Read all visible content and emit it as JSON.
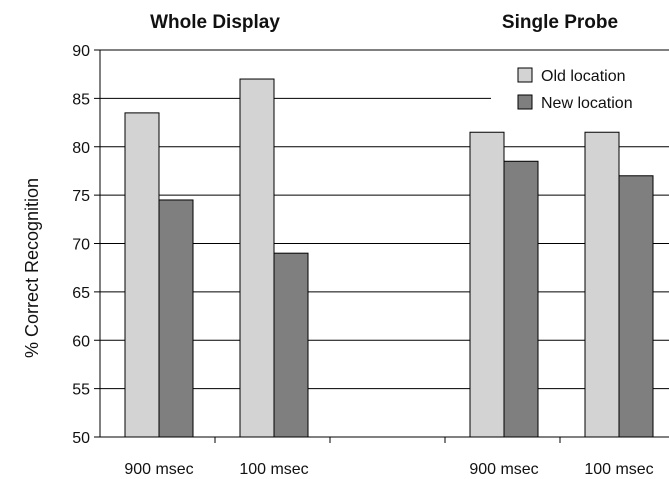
{
  "chart_data": {
    "type": "bar",
    "panels": [
      {
        "title": "Whole Display",
        "categories": [
          "900 msec",
          "100 msec"
        ]
      },
      {
        "title": "Single Probe",
        "categories": [
          "900 msec",
          "100 msec"
        ]
      }
    ],
    "categories": [
      "900 msec",
      "100 msec",
      "900 msec",
      "100 msec"
    ],
    "series": [
      {
        "name": "Old location",
        "color": "#d3d3d3",
        "values": [
          83.5,
          87,
          81.5,
          81.5
        ]
      },
      {
        "name": "New location",
        "color": "#7f7f7f",
        "values": [
          74.5,
          69,
          78.5,
          77
        ]
      }
    ],
    "ylabel": "% Correct Recognition",
    "xlabel": "",
    "ylim": [
      50,
      90
    ],
    "yticks": [
      50,
      55,
      60,
      65,
      70,
      75,
      80,
      85,
      90
    ],
    "grid": true,
    "legend_position": "top-right"
  }
}
